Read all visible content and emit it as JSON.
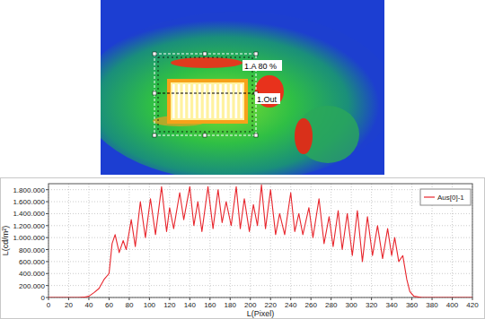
{
  "chart_data": {
    "type": "line",
    "annotations": [
      "1.A 80 %",
      "1.Out"
    ],
    "x_label": "L(Pixel)",
    "y_label": "L(cd/m²)",
    "x": [
      0,
      30,
      35,
      40,
      45,
      50,
      55,
      60,
      63,
      66,
      70,
      74,
      77,
      82,
      86,
      91,
      96,
      101,
      106,
      112,
      117,
      120,
      124,
      130,
      134,
      140,
      144,
      148,
      152,
      158,
      163,
      168,
      172,
      176,
      181,
      186,
      190,
      194,
      199,
      203,
      207,
      211,
      215,
      220,
      225,
      229,
      234,
      240,
      244,
      248,
      252,
      258,
      262,
      268,
      273,
      278,
      282,
      287,
      291,
      296,
      301,
      306,
      311,
      316,
      321,
      326,
      331,
      336,
      340,
      343,
      347,
      351,
      355,
      358,
      362,
      370,
      420
    ],
    "series": [
      {
        "name": "Aus[0]-1",
        "color": "#e8262d",
        "values": [
          0,
          0,
          5000,
          20000,
          80000,
          150000,
          300000,
          400000,
          900000,
          1050000,
          750000,
          950000,
          800000,
          1300000,
          850000,
          1600000,
          1000000,
          1650000,
          1050000,
          1850000,
          1100000,
          1500000,
          1150000,
          1750000,
          1300000,
          1850000,
          1200000,
          1600000,
          1100000,
          1850000,
          1150000,
          1800000,
          1250000,
          1600000,
          1200000,
          1850000,
          1150000,
          1650000,
          1100000,
          1550000,
          1200000,
          1880000,
          1150000,
          1800000,
          1050000,
          1400000,
          1050000,
          1750000,
          1100000,
          1400000,
          1050000,
          1500000,
          1000000,
          1650000,
          900000,
          1350000,
          850000,
          1450000,
          800000,
          1400000,
          700000,
          1450000,
          600000,
          1350000,
          700000,
          1200000,
          650000,
          1150000,
          700000,
          1000000,
          600000,
          700000,
          300000,
          100000,
          20000,
          0,
          0
        ]
      }
    ],
    "xlim": [
      0,
      420
    ],
    "xticks": [
      0,
      20,
      40,
      60,
      80,
      100,
      120,
      140,
      160,
      180,
      200,
      220,
      240,
      260,
      280,
      300,
      320,
      340,
      360,
      380,
      400,
      420
    ],
    "ylim": [
      0,
      1900000
    ],
    "yticks": [
      0,
      {
        "value": 200000,
        "label": "200.000"
      },
      {
        "value": 400000,
        "label": "400.000"
      },
      {
        "value": 600000,
        "label": "600.000"
      },
      {
        "value": 800000,
        "label": "800.000"
      },
      {
        "value": 1000000,
        "label": "1.000.000"
      },
      {
        "value": 1200000,
        "label": "1.200.000"
      },
      {
        "value": 1400000,
        "label": "1.400.000"
      },
      {
        "value": 1600000,
        "label": "1.600.000"
      },
      {
        "value": 1800000,
        "label": "1.800.000"
      }
    ],
    "grid": true,
    "legend": "top-right"
  }
}
